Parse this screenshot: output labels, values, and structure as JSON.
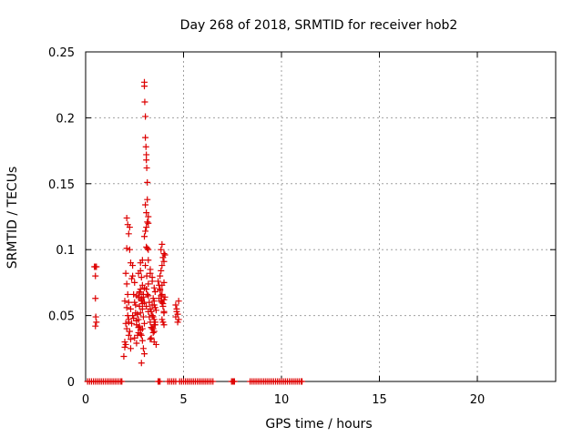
{
  "chart_data": {
    "type": "scatter",
    "title": "Day 268 of 2018, SRMTID for receiver hob2",
    "xlabel": "GPS time / hours",
    "ylabel": "SRMTID / TECUs",
    "xlim": [
      0,
      24
    ],
    "ylim": [
      0,
      0.25
    ],
    "xticks": [
      0,
      5,
      10,
      15,
      20
    ],
    "xtick_labels": [
      "0",
      "5",
      "10",
      "15",
      "20"
    ],
    "yticks": [
      0,
      0.05,
      0.1,
      0.15,
      0.2,
      0.25
    ],
    "ytick_labels": [
      "0",
      "0.05",
      "0.1",
      "0.15",
      "0.2",
      "0.25"
    ],
    "grid": true,
    "marker": "+",
    "color": "#dd0000",
    "series": [
      {
        "name": "hob2",
        "x": [
          0.45,
          0.5,
          0.55,
          0.5,
          0.5,
          0.52,
          0.55,
          0.5,
          1.95,
          2.0,
          2.0,
          2.05,
          2.05,
          2.1,
          2.15,
          2.2,
          2.2,
          2.25,
          2.3,
          2.3,
          2.05,
          2.1,
          2.15,
          2.2,
          2.3,
          2.4,
          2.45,
          2.5,
          2.55,
          2.1,
          2.2,
          2.25,
          2.35,
          2.4,
          2.5,
          2.6,
          2.1,
          2.15,
          2.25,
          2.3,
          2.4,
          2.45,
          2.55,
          2.6,
          2.0,
          2.1,
          2.2,
          2.35,
          2.5,
          2.6,
          2.65,
          2.7,
          2.75,
          2.8,
          2.85,
          2.9,
          2.95,
          3.0,
          2.7,
          2.75,
          2.8,
          2.85,
          2.9,
          2.6,
          2.65,
          2.7,
          2.8,
          2.9,
          2.95,
          3.0,
          2.7,
          2.8,
          2.85,
          2.9,
          3.0,
          2.75,
          2.85,
          2.95,
          2.8,
          2.9,
          2.85,
          2.65,
          2.75,
          2.85,
          2.95,
          2.7,
          2.8,
          2.9,
          3.0,
          3.0,
          3.02,
          3.05,
          3.05,
          3.08,
          3.1,
          3.1,
          3.12,
          3.15,
          3.15,
          3.05,
          3.1,
          3.2,
          3.1,
          3.15,
          3.2,
          3.0,
          3.05,
          3.1,
          3.15,
          3.2,
          3.05,
          3.12,
          3.2,
          3.1,
          3.2,
          3.15,
          3.0,
          3.1,
          3.2,
          3.25,
          3.3,
          3.35,
          3.4,
          3.45,
          3.5,
          3.55,
          3.25,
          3.3,
          3.4,
          3.5,
          3.3,
          3.35,
          3.45,
          3.5,
          3.6,
          3.3,
          3.4,
          3.5,
          3.55,
          3.2,
          3.3,
          3.4,
          3.5,
          3.6,
          3.45,
          3.55,
          3.5,
          3.35,
          3.4,
          3.45,
          3.5,
          3.55,
          3.7,
          3.75,
          3.8,
          3.85,
          3.9,
          3.95,
          4.0,
          3.8,
          3.85,
          3.9,
          4.0,
          4.05,
          3.75,
          3.85,
          3.95,
          4.05,
          3.8,
          3.9,
          4.0,
          3.85,
          3.9,
          3.95,
          4.0,
          4.0,
          3.9,
          3.95,
          4.0,
          3.9,
          4.0,
          4.6,
          4.65,
          4.7,
          4.75,
          4.6,
          4.7,
          4.75,
          4.65,
          0.1,
          0.2,
          0.3,
          0.4,
          0.5,
          0.6,
          0.7,
          0.8,
          0.9,
          1.0,
          1.1,
          1.2,
          1.3,
          1.4,
          1.5,
          1.6,
          1.7,
          1.8,
          1.85,
          3.7,
          3.75,
          3.8,
          4.2,
          4.3,
          4.4,
          4.5,
          4.6,
          4.8,
          4.9,
          5.0,
          5.1,
          5.2,
          5.3,
          5.4,
          5.5,
          5.6,
          5.7,
          5.8,
          5.9,
          6.0,
          6.1,
          6.2,
          6.3,
          6.4,
          6.5,
          7.45,
          7.5,
          7.55,
          7.6,
          8.4,
          8.5,
          8.6,
          8.7,
          8.8,
          8.9,
          9.0,
          9.1,
          9.2,
          9.3,
          9.4,
          9.5,
          9.6,
          9.7,
          9.8,
          9.9,
          10.0,
          10.1,
          10.2,
          10.3,
          10.4,
          10.5,
          10.6,
          10.7,
          10.8,
          10.9,
          11.0,
          11.05
        ],
        "y": [
          0.087,
          0.087,
          0.087,
          0.08,
          0.063,
          0.049,
          0.045,
          0.042,
          0.019,
          0.026,
          0.03,
          0.028,
          0.044,
          0.04,
          0.05,
          0.035,
          0.045,
          0.038,
          0.032,
          0.025,
          0.082,
          0.074,
          0.066,
          0.06,
          0.055,
          0.05,
          0.048,
          0.06,
          0.052,
          0.101,
          0.112,
          0.117,
          0.078,
          0.08,
          0.075,
          0.065,
          0.124,
          0.119,
          0.1,
          0.09,
          0.088,
          0.066,
          0.058,
          0.046,
          0.061,
          0.056,
          0.047,
          0.044,
          0.033,
          0.043,
          0.051,
          0.064,
          0.068,
          0.07,
          0.063,
          0.059,
          0.049,
          0.044,
          0.037,
          0.042,
          0.039,
          0.035,
          0.031,
          0.029,
          0.035,
          0.041,
          0.036,
          0.04,
          0.025,
          0.021,
          0.082,
          0.084,
          0.079,
          0.073,
          0.071,
          0.067,
          0.062,
          0.064,
          0.09,
          0.092,
          0.014,
          0.051,
          0.057,
          0.061,
          0.066,
          0.047,
          0.052,
          0.055,
          0.227,
          0.224,
          0.212,
          0.201,
          0.185,
          0.178,
          0.172,
          0.168,
          0.162,
          0.151,
          0.138,
          0.134,
          0.128,
          0.12,
          0.102,
          0.101,
          0.1,
          0.11,
          0.114,
          0.117,
          0.121,
          0.125,
          0.088,
          0.08,
          0.074,
          0.07,
          0.065,
          0.066,
          0.06,
          0.057,
          0.053,
          0.049,
          0.045,
          0.041,
          0.04,
          0.037,
          0.043,
          0.045,
          0.06,
          0.055,
          0.05,
          0.047,
          0.032,
          0.033,
          0.04,
          0.03,
          0.028,
          0.082,
          0.076,
          0.071,
          0.068,
          0.092,
          0.085,
          0.079,
          0.058,
          0.054,
          0.049,
          0.043,
          0.038,
          0.053,
          0.058,
          0.063,
          0.061,
          0.056,
          0.076,
          0.073,
          0.069,
          0.065,
          0.06,
          0.057,
          0.053,
          0.08,
          0.084,
          0.088,
          0.091,
          0.096,
          0.063,
          0.061,
          0.059,
          0.064,
          0.07,
          0.073,
          0.075,
          0.1,
          0.104,
          0.094,
          0.097,
          0.052,
          0.047,
          0.045,
          0.043,
          0.066,
          0.062,
          0.058,
          0.055,
          0.051,
          0.047,
          0.049,
          0.045,
          0.061,
          0.053,
          0,
          0,
          0,
          0,
          0,
          0,
          0,
          0,
          0,
          0,
          0,
          0,
          0,
          0,
          0,
          0,
          0,
          0,
          0,
          0,
          0,
          0,
          0,
          0,
          0,
          0,
          0,
          0,
          0,
          0,
          0,
          0,
          0,
          0,
          0,
          0,
          0,
          0,
          0,
          0,
          0,
          0,
          0,
          0,
          0,
          0,
          0,
          0,
          0,
          0,
          0,
          0,
          0,
          0,
          0,
          0,
          0,
          0,
          0,
          0,
          0,
          0,
          0,
          0,
          0,
          0,
          0,
          0,
          0,
          0,
          0,
          0,
          0,
          0,
          0,
          0,
          0
        ]
      }
    ]
  }
}
